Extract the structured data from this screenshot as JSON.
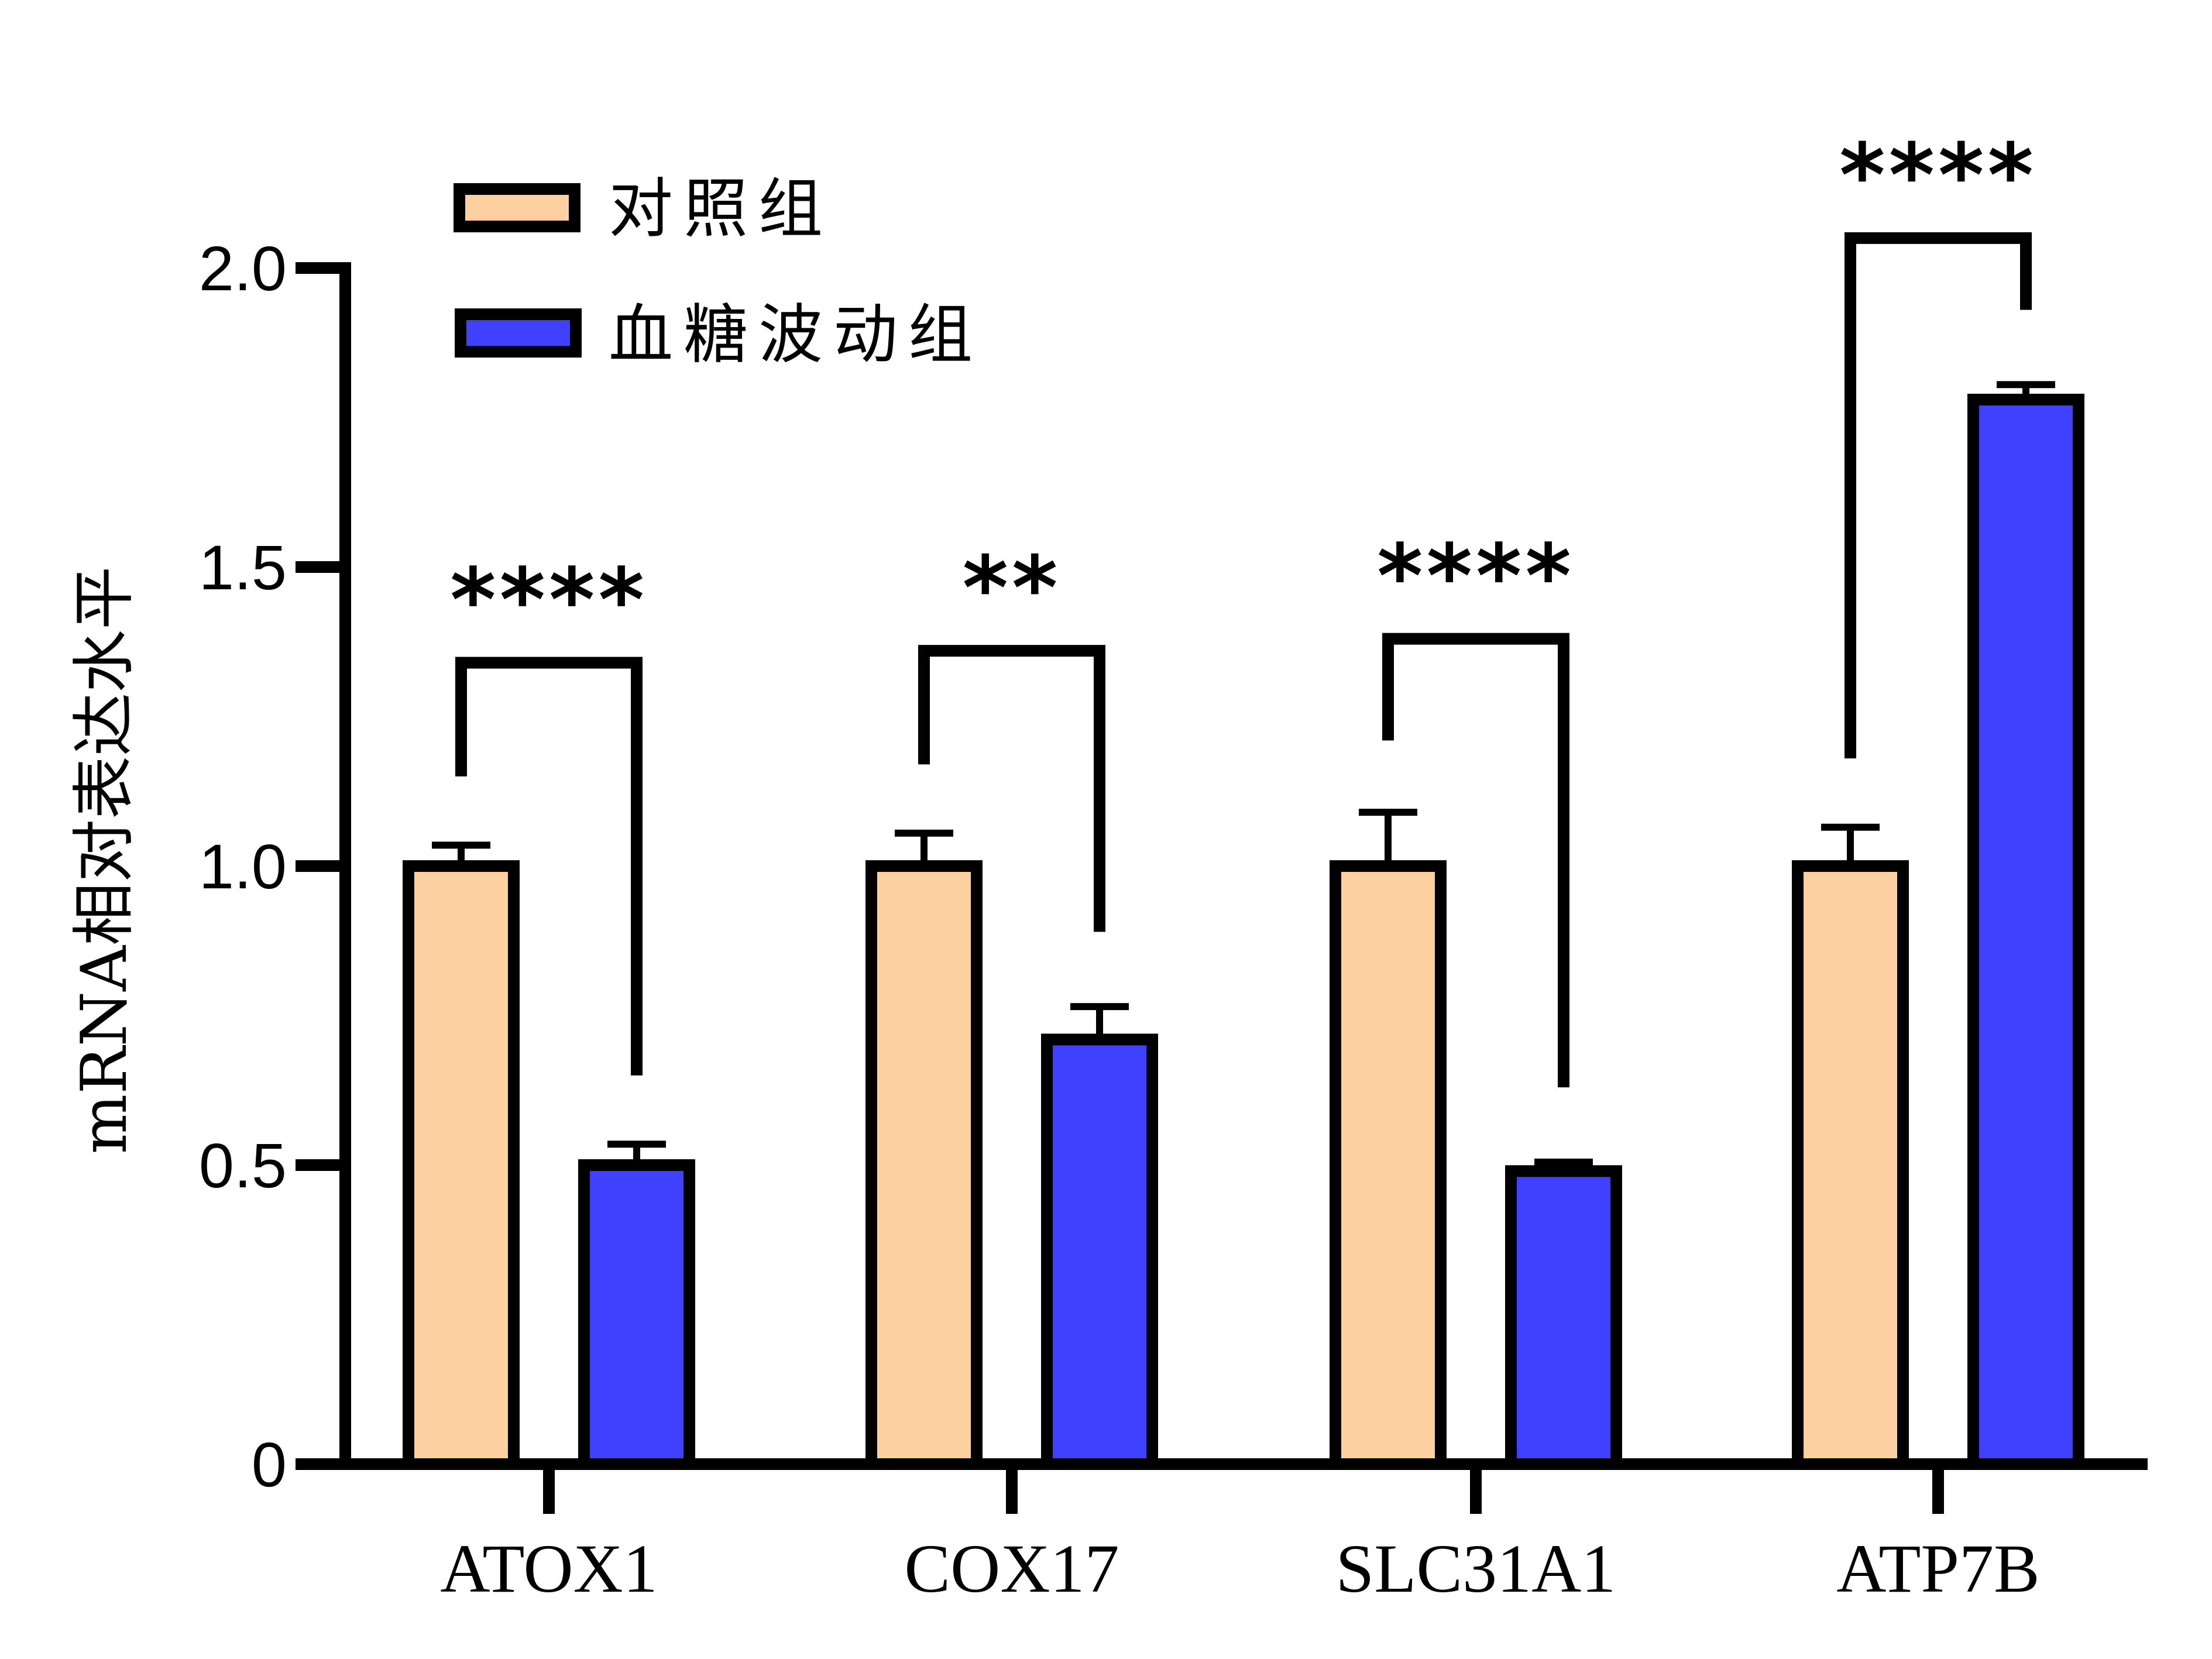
{
  "chart_data": {
    "type": "bar",
    "title": "",
    "xlabel": "",
    "ylabel": "mRNA相对表达水平",
    "ylim": [
      0,
      2.0
    ],
    "yticks": [
      0,
      0.5,
      1.0,
      1.5,
      2.0
    ],
    "ytick_labels": [
      "0",
      "0.5",
      "1.0",
      "1.5",
      "2.0"
    ],
    "grid": false,
    "legend_position": "top-left",
    "categories": [
      "ATOX1",
      "COX17",
      "SLC31A1",
      "ATP7B"
    ],
    "series": [
      {
        "name": "对照组",
        "color": "#FDD0A2",
        "values": [
          1.0,
          1.0,
          1.0,
          1.0
        ],
        "errors": [
          0.035,
          0.055,
          0.09,
          0.065
        ]
      },
      {
        "name": "血糖波动组",
        "color": "#4040FF",
        "values": [
          0.5,
          0.71,
          0.49,
          1.78
        ],
        "errors": [
          0.035,
          0.055,
          0.015,
          0.025
        ]
      }
    ],
    "significance": [
      {
        "category": "ATOX1",
        "label": "****",
        "bracket_y": 1.34,
        "left_end": 1.15,
        "right_end": 0.65
      },
      {
        "category": "COX17",
        "label": "**",
        "bracket_y": 1.36,
        "left_end": 1.17,
        "right_end": 0.89
      },
      {
        "category": "SLC31A1",
        "label": "****",
        "bracket_y": 1.38,
        "left_end": 1.21,
        "right_end": 0.63
      },
      {
        "category": "ATP7B",
        "label": "****",
        "bracket_y": 2.05,
        "left_end": 1.18,
        "right_end": 1.93
      }
    ]
  }
}
